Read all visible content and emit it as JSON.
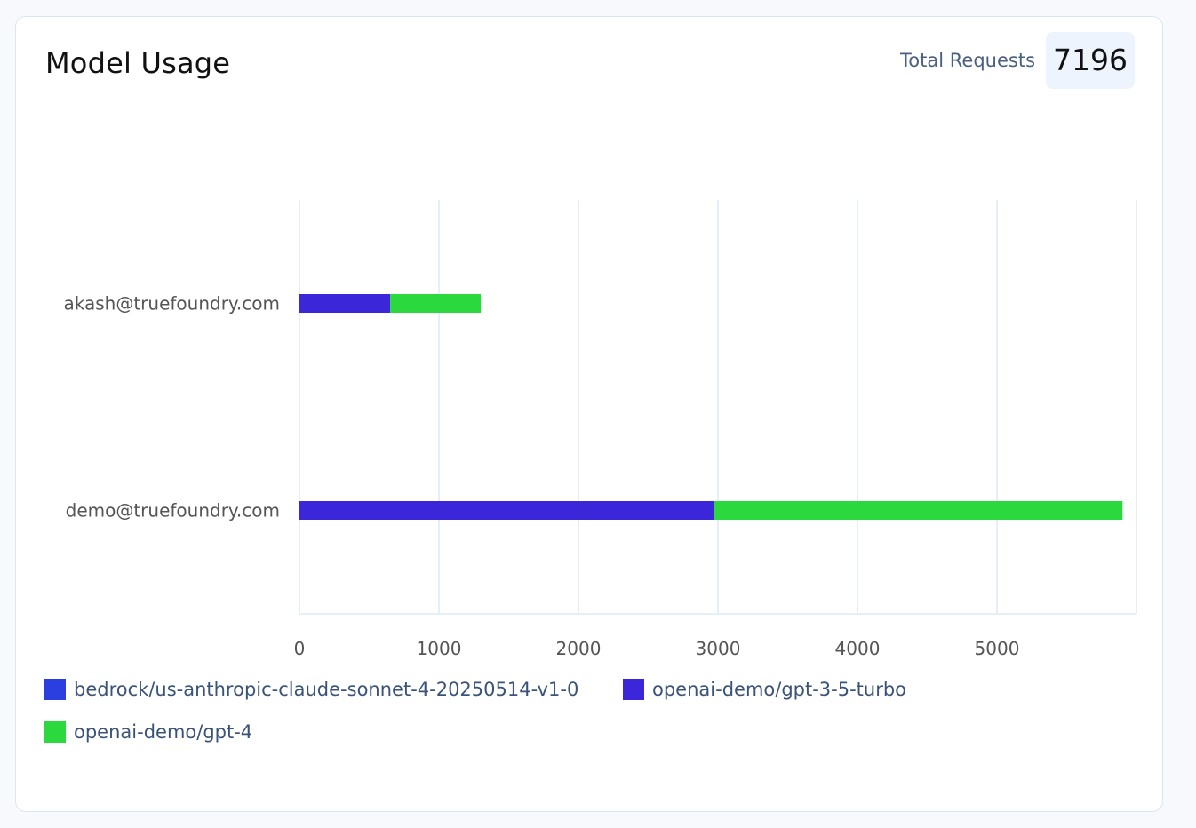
{
  "card": {
    "title": "Model Usage",
    "total_label": "Total Requests",
    "total_value": "7196"
  },
  "chart_data": {
    "type": "bar",
    "orientation": "horizontal",
    "stacked": true,
    "categories": [
      "akash@truefoundry.com",
      "demo@truefoundry.com"
    ],
    "series": [
      {
        "name": "bedrock/us-anthropic-claude-sonnet-4-20250514-v1-0",
        "color": "#2b3fe0",
        "values": [
          0,
          0
        ]
      },
      {
        "name": "openai-demo/gpt-3-5-turbo",
        "color": "#3b26d9",
        "values": [
          650,
          2970
        ]
      },
      {
        "name": "openai-demo/gpt-4",
        "color": "#2bd93f",
        "values": [
          650,
          2930
        ]
      }
    ],
    "xticks": [
      "0",
      "1000",
      "2000",
      "3000",
      "4000",
      "5000"
    ],
    "xlim": [
      0,
      6000
    ],
    "grid": true,
    "legend_position": "bottom-left"
  },
  "colors": {
    "grid": "#e6eff9",
    "axis_text": "#555555"
  }
}
